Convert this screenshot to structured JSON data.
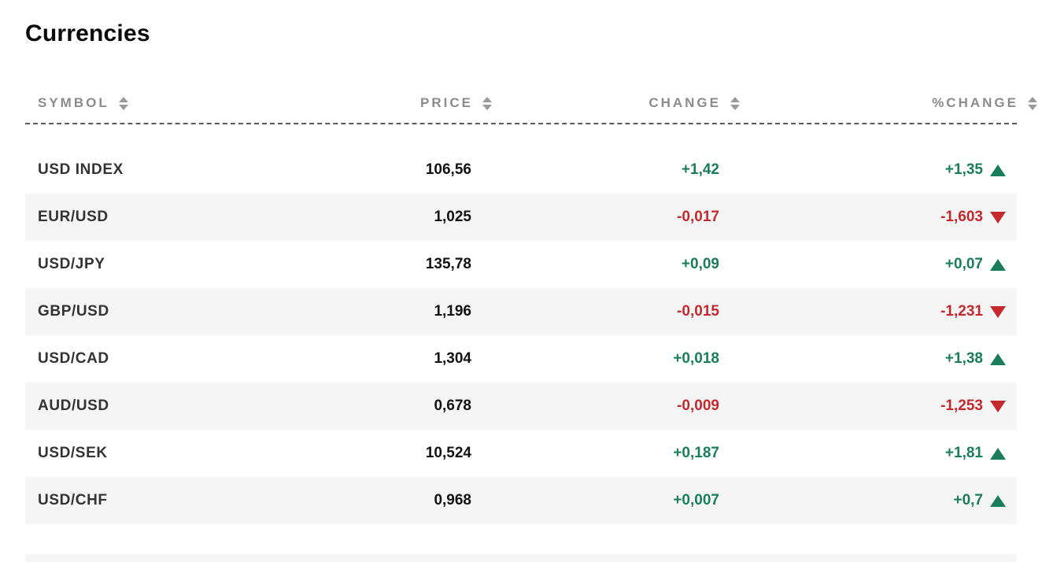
{
  "title": "Currencies",
  "table": {
    "columns": [
      {
        "label": "SYMBOL"
      },
      {
        "label": "PRICE"
      },
      {
        "label": "CHANGE"
      },
      {
        "label": "%CHANGE"
      }
    ],
    "rows": [
      {
        "symbol": "USD INDEX",
        "price": "106,56",
        "change": "+1,42",
        "pct_change": "+1,35",
        "direction": "up"
      },
      {
        "symbol": "EUR/USD",
        "price": "1,025",
        "change": "-0,017",
        "pct_change": "-1,603",
        "direction": "down"
      },
      {
        "symbol": "USD/JPY",
        "price": "135,78",
        "change": "+0,09",
        "pct_change": "+0,07",
        "direction": "up"
      },
      {
        "symbol": "GBP/USD",
        "price": "1,196",
        "change": "-0,015",
        "pct_change": "-1,231",
        "direction": "down"
      },
      {
        "symbol": "USD/CAD",
        "price": "1,304",
        "change": "+0,018",
        "pct_change": "+1,38",
        "direction": "up"
      },
      {
        "symbol": "AUD/USD",
        "price": "0,678",
        "change": "-0,009",
        "pct_change": "-1,253",
        "direction": "down"
      },
      {
        "symbol": "USD/SEK",
        "price": "10,524",
        "change": "+0,187",
        "pct_change": "+1,81",
        "direction": "up"
      },
      {
        "symbol": "USD/CHF",
        "price": "0,968",
        "change": "+0,007",
        "pct_change": "+0,7",
        "direction": "up"
      }
    ]
  },
  "colors": {
    "positive": "#1a7d5c",
    "negative": "#c5292e",
    "header_text": "#8c8c8c",
    "row_stripe": "#f5f5f5"
  }
}
